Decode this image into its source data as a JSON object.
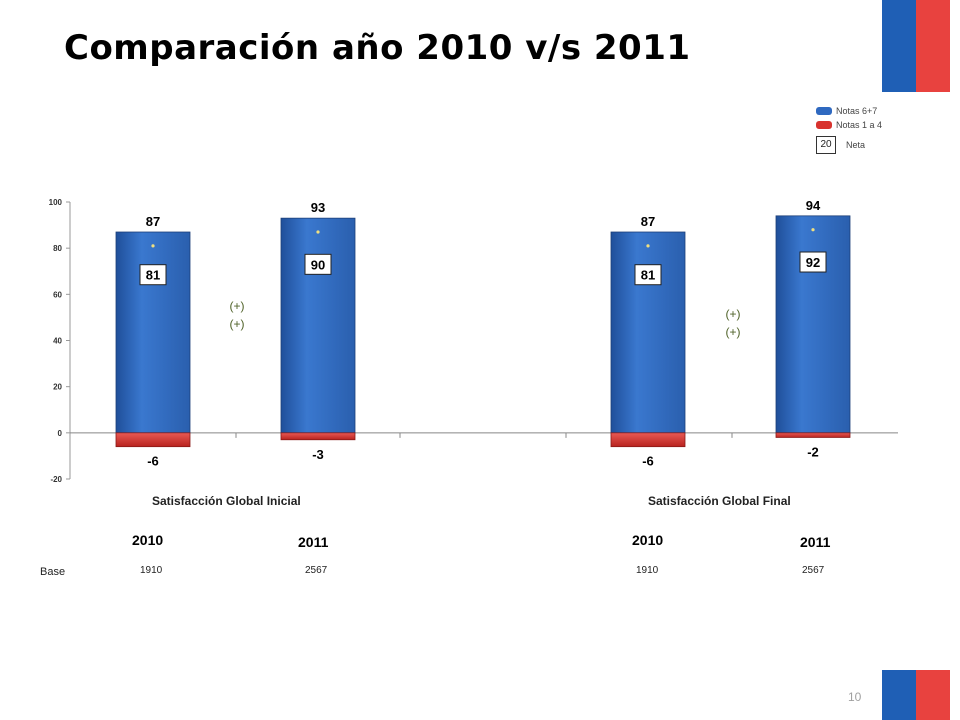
{
  "title": "Comparación año 2010 v/s 2011",
  "page_number": "10",
  "legend": {
    "items": [
      {
        "label": "Notas 6+7",
        "color": "#2f69c0"
      },
      {
        "label": "Notas 1 a 4",
        "color": "#d8332e"
      }
    ],
    "neta_box": "20",
    "neta_label": "Neta"
  },
  "groups": [
    {
      "label": "Satisfacción  Global Inicial"
    },
    {
      "label": "Satisfacción Global Final"
    }
  ],
  "base_label": "Base",
  "columns": [
    {
      "year": "2010",
      "base": "1910"
    },
    {
      "year": "2011",
      "base": "2567"
    },
    {
      "year": "2010",
      "base": "1910"
    },
    {
      "year": "2011",
      "base": "2567"
    }
  ],
  "chart_data": {
    "type": "bar",
    "categories": [
      "Satisfacción Global Inicial 2010",
      "Satisfacción Global Inicial 2011",
      "Satisfacción Global Final 2010",
      "Satisfacción Global Final 2011"
    ],
    "series": [
      {
        "name": "Notas 6+7",
        "values": [
          87,
          93,
          87,
          94
        ]
      },
      {
        "name": "Notas 1 a 4",
        "values": [
          -6,
          -3,
          -6,
          -2
        ]
      },
      {
        "name": "Neta",
        "values": [
          81,
          90,
          81,
          92
        ]
      }
    ],
    "significance": [
      {
        "lines": [
          "(+)",
          "(+)"
        ]
      },
      {
        "lines": [
          "(+)",
          "(+)"
        ]
      }
    ],
    "ylim": [
      -20,
      100
    ],
    "yticks": [
      -20,
      0,
      20,
      40,
      60,
      80,
      100
    ],
    "colors": {
      "positive": "#2f69c0",
      "negative": "#d8332e",
      "significance": "#4f6228"
    }
  }
}
